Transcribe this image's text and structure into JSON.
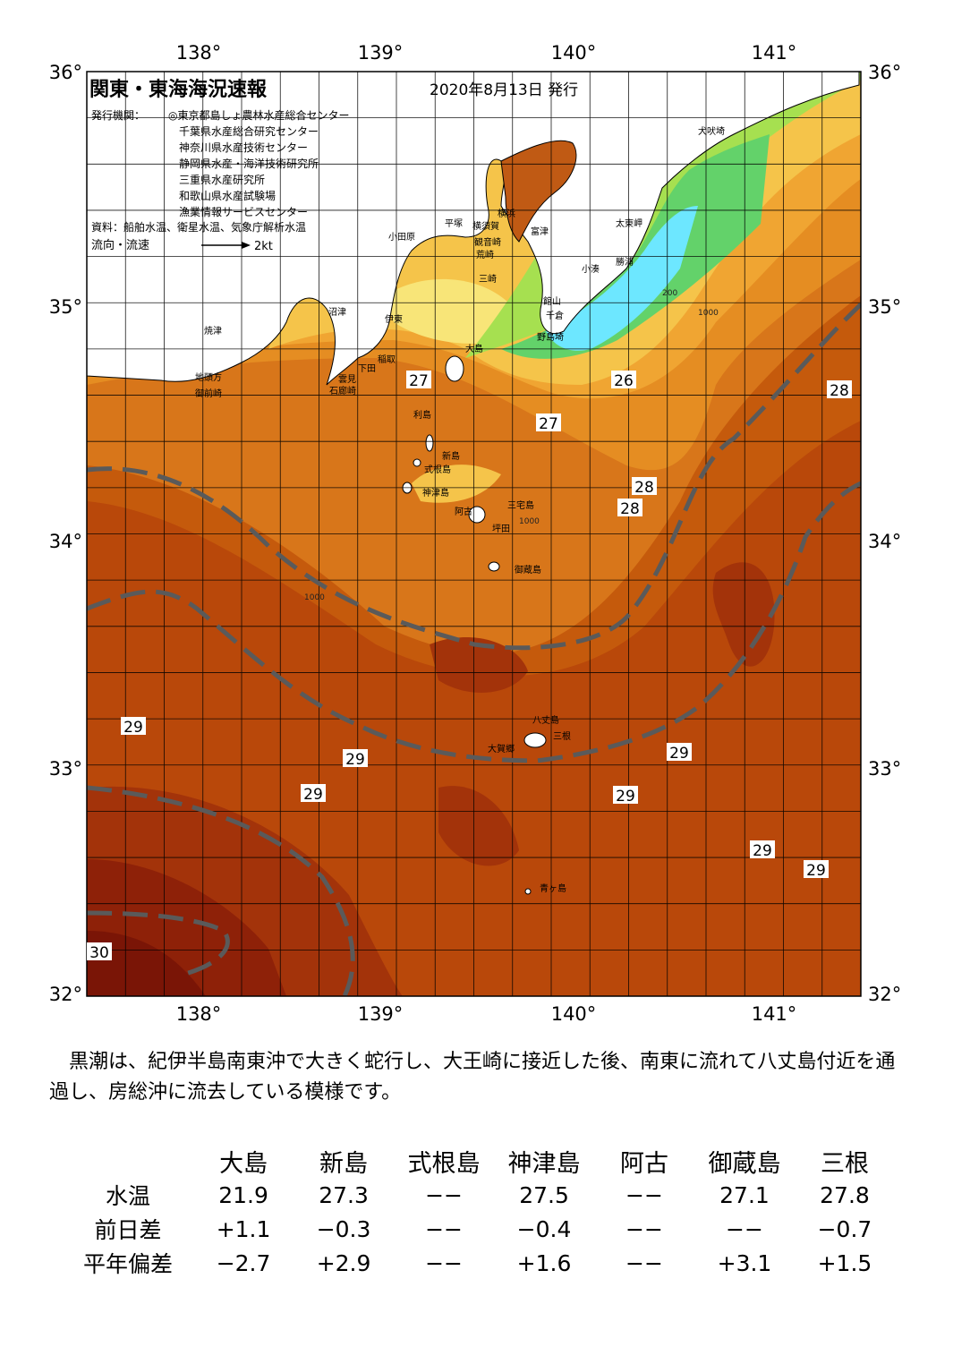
{
  "title": "関東・東海海況速報",
  "issued": "2020年8月13日 発行",
  "issuers_label": "発行機関：",
  "issuers": [
    "◎東京都島しょ農林水産総合センター",
    "千葉県水産総合研究センター",
    "神奈川県水産技術センター",
    "静岡県水産・海洋技術研究所",
    "三重県水産研究所",
    "和歌山県水産試験場",
    "漁業情報サービスセンター"
  ],
  "sources": "資料：船舶水温、衛星水温、気象庁解析水温",
  "current_legend": "流向・流速",
  "current_scale": "2kt",
  "longitudes": [
    "138°",
    "139°",
    "140°",
    "141°"
  ],
  "latitudes": [
    "36°",
    "35°",
    "34°",
    "33°",
    "32°"
  ],
  "places": [
    "犬吠埼",
    "太東岬",
    "勝浦",
    "小湊",
    "館山",
    "千倉",
    "野島埼",
    "富津",
    "横須賀",
    "観音崎",
    "荒崎",
    "三崎",
    "横浜",
    "平塚",
    "小田原",
    "沼津",
    "伊東",
    "稲取",
    "下田",
    "石廊崎",
    "雲見",
    "焼津",
    "地頭方",
    "御前崎",
    "大島",
    "利島",
    "新島",
    "式根島",
    "神津島",
    "三宅島",
    "坪田",
    "阿古",
    "御蔵島",
    "八丈島",
    "三根",
    "大賀郷",
    "青ヶ島"
  ],
  "temperature_labels": [
    "27",
    "26",
    "27",
    "28",
    "28",
    "28",
    "29",
    "29",
    "29",
    "29",
    "29",
    "29",
    "29",
    "30"
  ],
  "isobath_labels": [
    "200",
    "1000"
  ],
  "description": "　黒潮は、紀伊半島南東沖で大きく蛇行し、大王崎に接近した後、南東に流れて八丈島付近を通過し、房総沖に流去している模様です。",
  "table": {
    "stations": [
      "大島",
      "新島",
      "式根島",
      "神津島",
      "阿古",
      "御蔵島",
      "三根"
    ],
    "rows": [
      {
        "label": "水温",
        "values": [
          "21.9",
          "27.3",
          "−−",
          "27.5",
          "−−",
          "27.1",
          "27.8"
        ]
      },
      {
        "label": "前日差",
        "values": [
          "+1.1",
          "−0.3",
          "−−",
          "−0.4",
          "−−",
          "−−",
          "−0.7"
        ]
      },
      {
        "label": "平年偏差",
        "values": [
          "−2.7",
          "+2.9",
          "−−",
          "+1.6",
          "−−",
          "+3.1",
          "+1.5"
        ]
      }
    ]
  },
  "colors": {
    "land": "#ffffff",
    "kuroshio_axis": "#5a5a5a",
    "warm": "#b23a08",
    "cold": "#6de7ff"
  }
}
